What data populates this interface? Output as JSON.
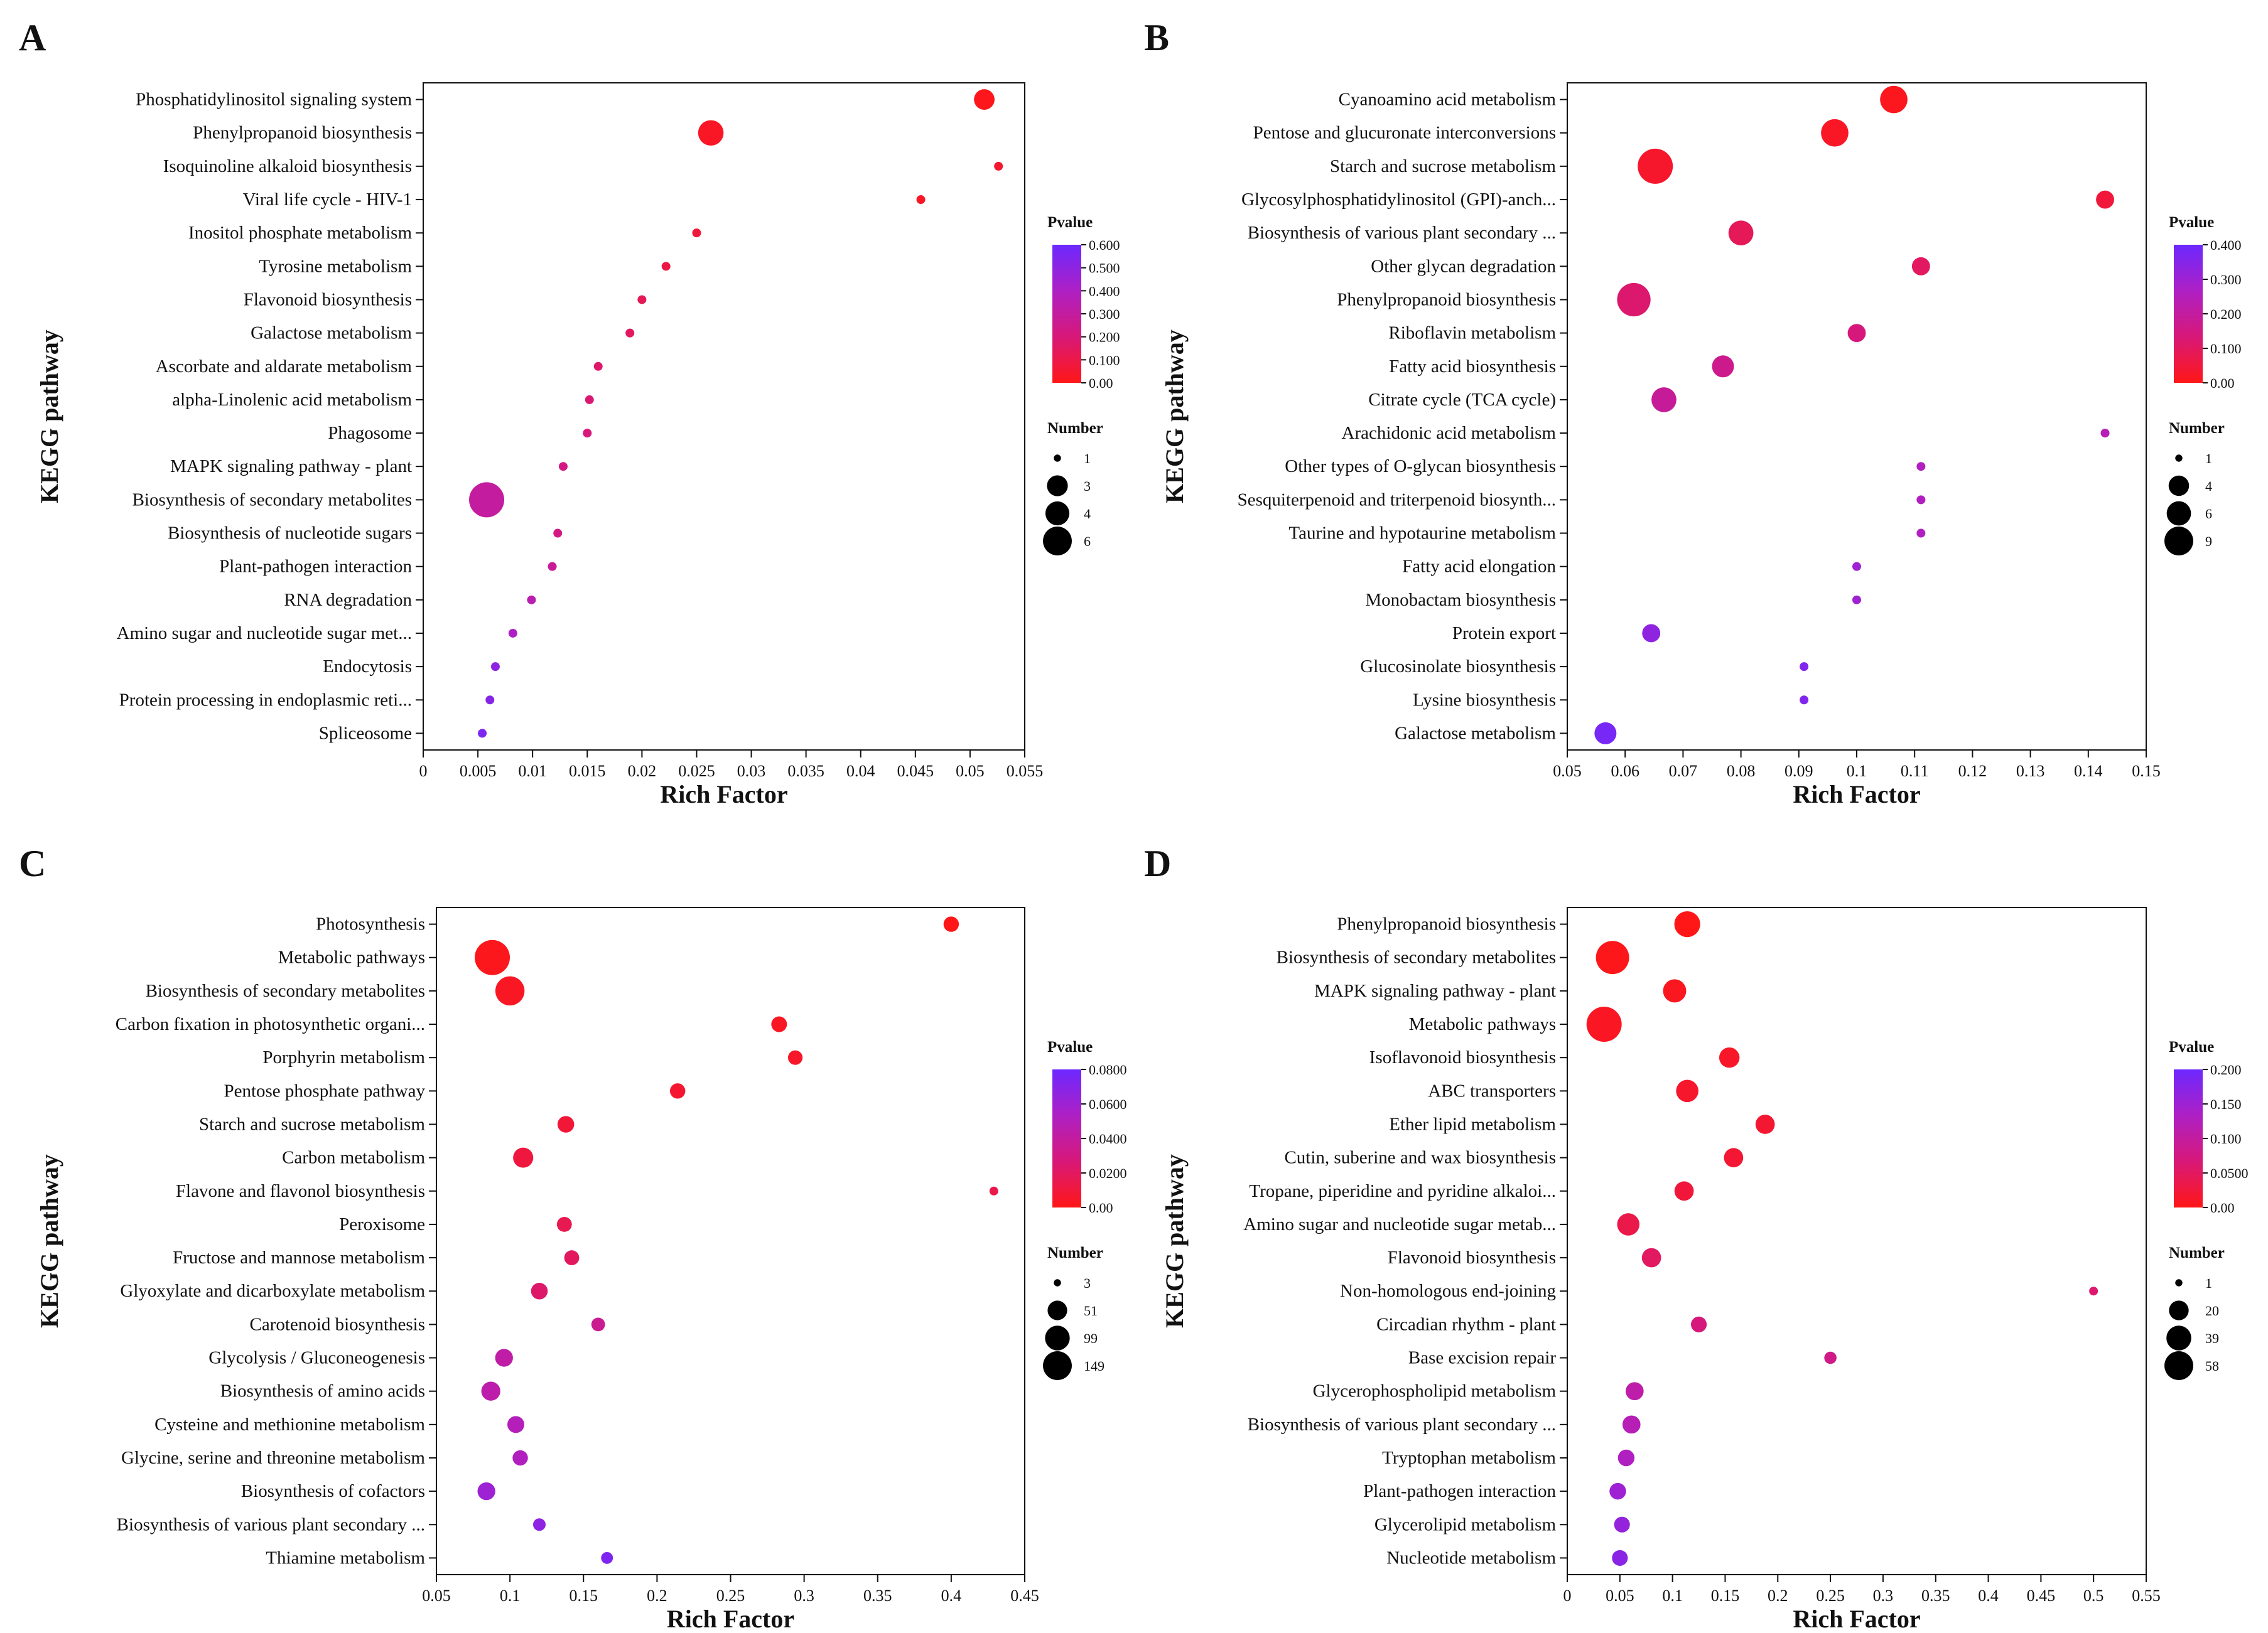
{
  "chart_data": [
    {
      "panel": "A",
      "type": "scatter",
      "xlabel": "Rich Factor",
      "ylabel": "KEGG pathway",
      "xlim": [
        0,
        0.055
      ],
      "xticks": [
        0,
        0.005,
        0.01,
        0.015,
        0.02,
        0.025,
        0.03,
        0.035,
        0.04,
        0.045,
        0.05,
        0.055
      ],
      "xtick_labels": [
        "0",
        "0.005",
        "0.01",
        "0.015",
        "0.02",
        "0.025",
        "0.03",
        "0.035",
        "0.04",
        "0.045",
        "0.05",
        "0.055"
      ],
      "pvalue_legend": {
        "title": "Pvalue",
        "range": [
          0,
          0.6
        ],
        "ticks": [
          "0.600",
          "0.500",
          "0.400",
          "0.300",
          "0.200",
          "0.100",
          "0.00"
        ]
      },
      "number_legend": {
        "title": "Number",
        "values": [
          1,
          3,
          4,
          6
        ],
        "labels": [
          "1",
          "3",
          "4",
          "6"
        ]
      },
      "pathways": [
        "Phosphatidylinositol signaling system",
        "Phenylpropanoid biosynthesis",
        "Isoquinoline alkaloid biosynthesis",
        "Viral life cycle - HIV-1",
        "Inositol phosphate metabolism",
        "Tyrosine metabolism",
        "Flavonoid biosynthesis",
        "Galactose metabolism",
        "Ascorbate and aldarate metabolism",
        "alpha-Linolenic acid metabolism",
        "Phagosome",
        "MAPK signaling pathway - plant",
        "Biosynthesis of secondary metabolites",
        "Biosynthesis of nucleotide sugars",
        "Plant-pathogen interaction",
        "RNA degradation",
        "Amino sugar and nucleotide sugar met...",
        "Endocytosis",
        "Protein processing in endoplasmic reti...",
        "Spliceosome"
      ],
      "rich_factor": [
        0.0513,
        0.0263,
        0.0526,
        0.0455,
        0.025,
        0.0222,
        0.02,
        0.0189,
        0.016,
        0.0152,
        0.015,
        0.0128,
        0.0058,
        0.0123,
        0.0118,
        0.0099,
        0.0082,
        0.0066,
        0.0061,
        0.0054
      ],
      "pvalue": [
        0.01,
        0.03,
        0.05,
        0.03,
        0.07,
        0.09,
        0.13,
        0.15,
        0.17,
        0.19,
        0.2,
        0.23,
        0.3,
        0.23,
        0.28,
        0.35,
        0.4,
        0.5,
        0.52,
        0.55
      ],
      "number": [
        2,
        3,
        1,
        1,
        1,
        1,
        1,
        1,
        1,
        1,
        1,
        1,
        6,
        1,
        1,
        1,
        1,
        1,
        1,
        1
      ]
    },
    {
      "panel": "B",
      "type": "scatter",
      "xlabel": "Rich Factor",
      "ylabel": "KEGG pathway",
      "xlim": [
        0.05,
        0.15
      ],
      "xticks": [
        0.05,
        0.06,
        0.07,
        0.08,
        0.09,
        0.1,
        0.11,
        0.12,
        0.13,
        0.14,
        0.15
      ],
      "xtick_labels": [
        "0.05",
        "0.06",
        "0.07",
        "0.08",
        "0.09",
        "0.1",
        "0.11",
        "0.12",
        "0.13",
        "0.14",
        "0.15"
      ],
      "pvalue_legend": {
        "title": "Pvalue",
        "range": [
          0,
          0.4
        ],
        "ticks": [
          "0.400",
          "0.300",
          "0.200",
          "0.100",
          "0.00"
        ]
      },
      "number_legend": {
        "title": "Number",
        "values": [
          1,
          4,
          6,
          9
        ],
        "labels": [
          "1",
          "4",
          "6",
          "9"
        ]
      },
      "pathways": [
        "Cyanoamino acid metabolism",
        "Pentose and glucuronate interconversions",
        "Starch and sucrose metabolism",
        "Glycosylphosphatidylinositol (GPI)-anch...",
        "Biosynthesis of various plant secondary ...",
        "Other glycan degradation",
        "Phenylpropanoid biosynthesis",
        "Riboflavin metabolism",
        "Fatty acid biosynthesis",
        "Citrate cycle (TCA cycle)",
        "Arachidonic acid metabolism",
        "Other types of O-glycan biosynthesis",
        "Sesquiterpenoid and triterpenoid biosynth...",
        "Taurine and hypotaurine metabolism",
        "Fatty acid elongation",
        "Monobactam biosynthesis",
        "Protein export",
        "Glucosinolate biosynthesis",
        "Lysine biosynthesis",
        "Galactose metabolism"
      ],
      "rich_factor": [
        0.1064,
        0.0962,
        0.0652,
        0.1429,
        0.08,
        0.1111,
        0.0615,
        0.1,
        0.0769,
        0.0667,
        0.1429,
        0.1111,
        0.1111,
        0.1111,
        0.1,
        0.1,
        0.0645,
        0.0909,
        0.0909,
        0.0566
      ],
      "pvalue": [
        0.01,
        0.02,
        0.03,
        0.05,
        0.09,
        0.1,
        0.12,
        0.14,
        0.17,
        0.19,
        0.24,
        0.26,
        0.26,
        0.26,
        0.3,
        0.3,
        0.33,
        0.36,
        0.36,
        0.38
      ],
      "number": [
        5,
        5,
        9,
        2,
        4,
        2,
        8,
        2,
        3,
        4,
        1,
        1,
        1,
        1,
        1,
        1,
        2,
        1,
        1,
        3
      ]
    },
    {
      "panel": "C",
      "type": "scatter",
      "xlabel": "Rich Factor",
      "ylabel": "KEGG pathway",
      "xlim": [
        0.05,
        0.45
      ],
      "xticks": [
        0.05,
        0.1,
        0.15,
        0.2,
        0.25,
        0.3,
        0.35,
        0.4,
        0.45
      ],
      "xtick_labels": [
        "0.05",
        "0.1",
        "0.15",
        "0.2",
        "0.25",
        "0.3",
        "0.35",
        "0.4",
        "0.45"
      ],
      "pvalue_legend": {
        "title": "Pvalue",
        "range": [
          0,
          0.09
        ],
        "ticks": [
          "0.0800",
          "0.0600",
          "0.0400",
          "0.0200",
          "0.00"
        ]
      },
      "number_legend": {
        "title": "Number",
        "values": [
          3,
          51,
          99,
          149
        ],
        "labels": [
          "3",
          "51",
          "99",
          "149"
        ]
      },
      "pathways": [
        "Photosynthesis",
        "Metabolic pathways",
        "Biosynthesis of secondary metabolites",
        "Carbon fixation in photosynthetic organi...",
        "Porphyrin metabolism",
        "Pentose phosphate pathway",
        "Starch and sucrose metabolism",
        "Carbon metabolism",
        "Flavone and flavonol biosynthesis",
        "Peroxisome",
        "Fructose and mannose metabolism",
        "Glyoxylate and dicarboxylate metabolism",
        "Carotenoid biosynthesis",
        "Glycolysis / Gluconeogenesis",
        "Biosynthesis of amino acids",
        "Cysteine and methionine metabolism",
        "Glycine, serine and threonine metabolism",
        "Biosynthesis of cofactors",
        "Biosynthesis of various plant secondary ...",
        "Thiamine metabolism"
      ],
      "rich_factor": [
        0.4,
        0.088,
        0.1,
        0.283,
        0.294,
        0.214,
        0.138,
        0.109,
        0.429,
        0.137,
        0.142,
        0.12,
        0.16,
        0.096,
        0.087,
        0.104,
        0.107,
        0.084,
        0.12,
        0.166
      ],
      "pvalue": [
        0.0,
        0.002,
        0.004,
        0.004,
        0.006,
        0.008,
        0.01,
        0.012,
        0.016,
        0.018,
        0.022,
        0.026,
        0.04,
        0.048,
        0.05,
        0.056,
        0.058,
        0.068,
        0.075,
        0.082
      ],
      "number": [
        12,
        149,
        90,
        13,
        10,
        12,
        16,
        30,
        3,
        11,
        11,
        16,
        8,
        20,
        25,
        17,
        12,
        20,
        6,
        5
      ]
    },
    {
      "panel": "D",
      "type": "scatter",
      "xlabel": "Rich Factor",
      "ylabel": "KEGG pathway",
      "xlim": [
        0,
        0.55
      ],
      "xticks": [
        0,
        0.05,
        0.1,
        0.15,
        0.2,
        0.25,
        0.3,
        0.35,
        0.4,
        0.45,
        0.5,
        0.55
      ],
      "xtick_labels": [
        "0",
        "0.05",
        "0.1",
        "0.15",
        "0.2",
        "0.25",
        "0.3",
        "0.35",
        "0.4",
        "0.45",
        "0.5",
        "0.55"
      ],
      "pvalue_legend": {
        "title": "Pvalue",
        "range": [
          0,
          0.2
        ],
        "ticks": [
          "0.200",
          "0.150",
          "0.100",
          "0.0500",
          "0.00"
        ]
      },
      "number_legend": {
        "title": "Number",
        "values": [
          1,
          20,
          39,
          58
        ],
        "labels": [
          "1",
          "20",
          "39",
          "58"
        ]
      },
      "pathways": [
        "Phenylpropanoid biosynthesis",
        "Biosynthesis of secondary metabolites",
        "MAPK signaling pathway - plant",
        "Metabolic pathways",
        "Isoflavonoid biosynthesis",
        "ABC transporters",
        "Ether lipid metabolism",
        "Cutin, suberine and wax biosynthesis",
        "Tropane, piperidine and pyridine alkaloi...",
        "Amino sugar and nucleotide sugar metab...",
        "Flavonoid biosynthesis",
        "Non-homologous end-joining",
        "Circadian rhythm - plant",
        "Base excision repair",
        "Glycerophospholipid metabolism",
        "Biosynthesis of various plant secondary ...",
        "Tryptophan metabolism",
        "Plant-pathogen interaction",
        "Glycerolipid metabolism",
        "Nucleotide metabolism"
      ],
      "rich_factor": [
        0.114,
        0.043,
        0.102,
        0.035,
        0.154,
        0.114,
        0.188,
        0.158,
        0.111,
        0.058,
        0.08,
        0.5,
        0.125,
        0.25,
        0.064,
        0.061,
        0.056,
        0.048,
        0.052,
        0.05
      ],
      "pvalue": [
        0.0,
        0.002,
        0.006,
        0.008,
        0.012,
        0.015,
        0.018,
        0.02,
        0.025,
        0.035,
        0.05,
        0.06,
        0.07,
        0.08,
        0.11,
        0.12,
        0.13,
        0.15,
        0.16,
        0.17
      ],
      "number": [
        25,
        50,
        18,
        58,
        12,
        16,
        10,
        10,
        10,
        16,
        10,
        1,
        5,
        2,
        8,
        8,
        6,
        6,
        5,
        5
      ]
    }
  ]
}
